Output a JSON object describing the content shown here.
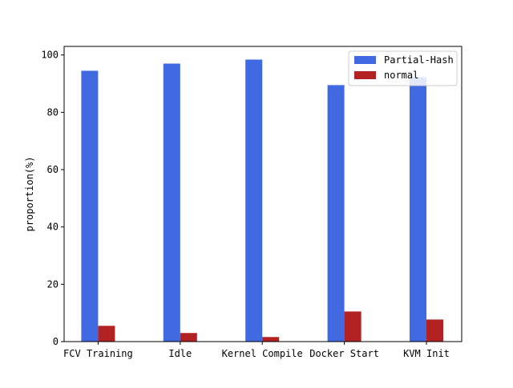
{
  "chart_data": {
    "type": "bar",
    "title": "",
    "xlabel": "",
    "ylabel": "proportion(%)",
    "ylim": [
      0,
      103
    ],
    "yticks": [
      0,
      20,
      40,
      60,
      80,
      100
    ],
    "categories": [
      "FCV Training",
      "Idle",
      "Kernel Compile",
      "Docker Start",
      "KVM Init"
    ],
    "series": [
      {
        "name": "Partial-Hash",
        "color": "#4169E1",
        "values": [
          94.5,
          97.0,
          98.4,
          89.5,
          92.3
        ]
      },
      {
        "name": "normal",
        "color": "#B22222",
        "values": [
          5.5,
          3.0,
          1.6,
          10.5,
          7.7
        ]
      }
    ],
    "legend": {
      "position": "top-right"
    },
    "grid": false
  }
}
